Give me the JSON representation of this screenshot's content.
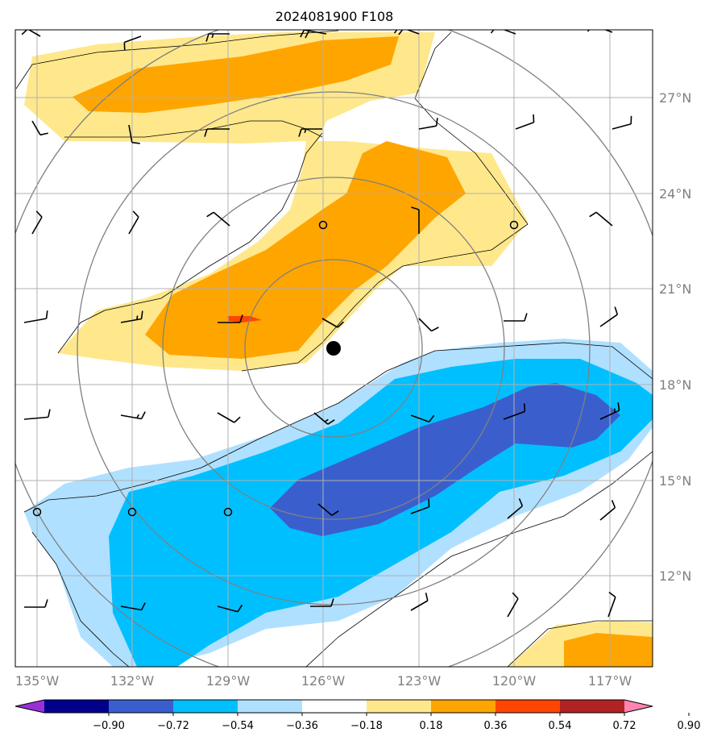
{
  "title": "2024081900 F108",
  "map": {
    "lat_labels": [
      "27°N",
      "24°N",
      "21°N",
      "18°N",
      "15°N",
      "12°N"
    ],
    "lon_labels": [
      "135°W",
      "132°W",
      "129°W",
      "126°W",
      "123°W",
      "120°W",
      "117°W"
    ],
    "lat_values": [
      27,
      24,
      21,
      18,
      15,
      12
    ],
    "lon_values": [
      -135,
      -132,
      -129,
      -126,
      -123,
      -120,
      -117
    ],
    "extent": {
      "lon_min": -135.7,
      "lon_max": -115.7,
      "lat_min": 9.9,
      "lat_max": 29.9
    },
    "storm_center": {
      "lon": -125.7,
      "lat": 18.98
    },
    "range_rings_note": "concentric rings around storm center"
  },
  "colorbar": {
    "levels": [
      "-0.90",
      "-0.72",
      "-0.54",
      "-0.36",
      "-0.18",
      "0.18",
      "0.36",
      "0.54",
      "0.72",
      "0.90"
    ],
    "colors": [
      "#9b30d9",
      "#00008b",
      "#3a5fcd",
      "#00bfff",
      "#b0e0ff",
      "#ffffff",
      "#ffe88c",
      "#ffa500",
      "#ff4500",
      "#b22222",
      "#ff85b0"
    ]
  },
  "shading_colors": {
    "pos1": "#ffe88c",
    "pos2": "#ffa500",
    "pos3": "#ff4500",
    "neg1": "#b0e0ff",
    "neg2": "#00bfff",
    "neg3": "#3a5fcd"
  }
}
